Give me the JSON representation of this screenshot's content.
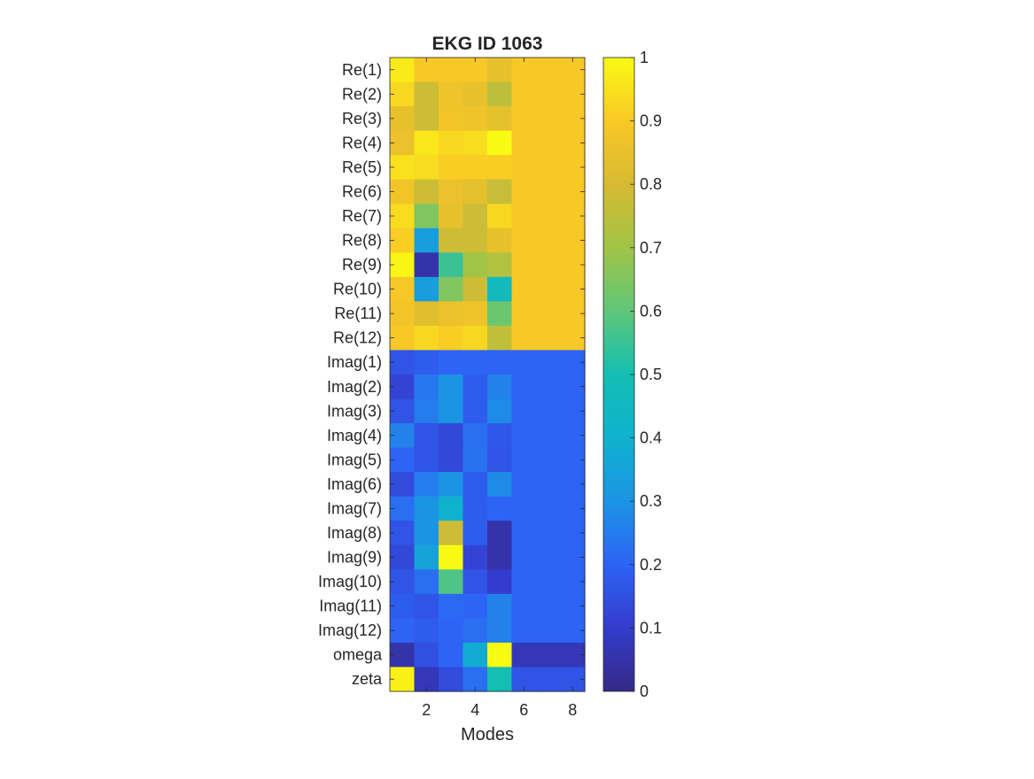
{
  "chart_data": {
    "type": "heatmap",
    "title": "EKG ID 1063",
    "xlabel": "Modes",
    "ylabel": "",
    "colormap": "parula",
    "clim": [
      0,
      1
    ],
    "x": [
      1,
      2,
      3,
      4,
      5,
      6,
      7,
      8
    ],
    "x_ticks": [
      2,
      4,
      6,
      8
    ],
    "colorbar_ticks": [
      0,
      0.1,
      0.2,
      0.3,
      0.4,
      0.5,
      0.6,
      0.7,
      0.8,
      0.9,
      1
    ],
    "row_labels": [
      "Re(1)",
      "Re(2)",
      "Re(3)",
      "Re(4)",
      "Re(5)",
      "Re(6)",
      "Re(7)",
      "Re(8)",
      "Re(9)",
      "Re(10)",
      "Re(11)",
      "Re(12)",
      "Imag(1)",
      "Imag(2)",
      "Imag(3)",
      "Imag(4)",
      "Imag(5)",
      "Imag(6)",
      "Imag(7)",
      "Imag(8)",
      "Imag(9)",
      "Imag(10)",
      "Imag(11)",
      "Imag(12)",
      "omega",
      "zeta"
    ],
    "values": [
      [
        0.97,
        0.9,
        0.9,
        0.9,
        0.85,
        0.9,
        0.9,
        0.9
      ],
      [
        0.93,
        0.78,
        0.87,
        0.85,
        0.75,
        0.9,
        0.9,
        0.9
      ],
      [
        0.85,
        0.78,
        0.88,
        0.87,
        0.84,
        0.9,
        0.9,
        0.9
      ],
      [
        0.86,
        0.96,
        0.93,
        0.94,
        1.0,
        0.9,
        0.9,
        0.9
      ],
      [
        0.95,
        0.94,
        0.91,
        0.91,
        0.91,
        0.9,
        0.9,
        0.9
      ],
      [
        0.88,
        0.78,
        0.86,
        0.84,
        0.77,
        0.9,
        0.9,
        0.9
      ],
      [
        0.94,
        0.65,
        0.85,
        0.78,
        0.93,
        0.9,
        0.9,
        0.9
      ],
      [
        0.91,
        0.33,
        0.78,
        0.78,
        0.85,
        0.9,
        0.9,
        0.9
      ],
      [
        0.99,
        0.05,
        0.55,
        0.7,
        0.73,
        0.9,
        0.9,
        0.9
      ],
      [
        0.89,
        0.33,
        0.65,
        0.78,
        0.46,
        0.9,
        0.9,
        0.9
      ],
      [
        0.88,
        0.83,
        0.86,
        0.87,
        0.62,
        0.9,
        0.9,
        0.9
      ],
      [
        0.9,
        0.93,
        0.91,
        0.93,
        0.76,
        0.9,
        0.9,
        0.9
      ],
      [
        0.16,
        0.18,
        0.2,
        0.2,
        0.2,
        0.2,
        0.2,
        0.2
      ],
      [
        0.12,
        0.24,
        0.3,
        0.18,
        0.26,
        0.2,
        0.2,
        0.2
      ],
      [
        0.16,
        0.25,
        0.3,
        0.18,
        0.28,
        0.2,
        0.2,
        0.2
      ],
      [
        0.26,
        0.16,
        0.13,
        0.22,
        0.17,
        0.2,
        0.2,
        0.2
      ],
      [
        0.2,
        0.16,
        0.13,
        0.23,
        0.16,
        0.2,
        0.2,
        0.2
      ],
      [
        0.14,
        0.25,
        0.3,
        0.18,
        0.28,
        0.2,
        0.2,
        0.2
      ],
      [
        0.22,
        0.3,
        0.4,
        0.18,
        0.2,
        0.2,
        0.2,
        0.2
      ],
      [
        0.16,
        0.3,
        0.78,
        0.18,
        0.05,
        0.2,
        0.2,
        0.2
      ],
      [
        0.13,
        0.35,
        1.0,
        0.12,
        0.05,
        0.2,
        0.2,
        0.2
      ],
      [
        0.16,
        0.22,
        0.58,
        0.16,
        0.1,
        0.2,
        0.2,
        0.2
      ],
      [
        0.18,
        0.16,
        0.21,
        0.2,
        0.26,
        0.2,
        0.2,
        0.2
      ],
      [
        0.2,
        0.18,
        0.2,
        0.22,
        0.26,
        0.2,
        0.2,
        0.2
      ],
      [
        0.05,
        0.15,
        0.2,
        0.38,
        1.0,
        0.07,
        0.07,
        0.07
      ],
      [
        0.98,
        0.07,
        0.14,
        0.22,
        0.5,
        0.16,
        0.16,
        0.16
      ]
    ]
  }
}
